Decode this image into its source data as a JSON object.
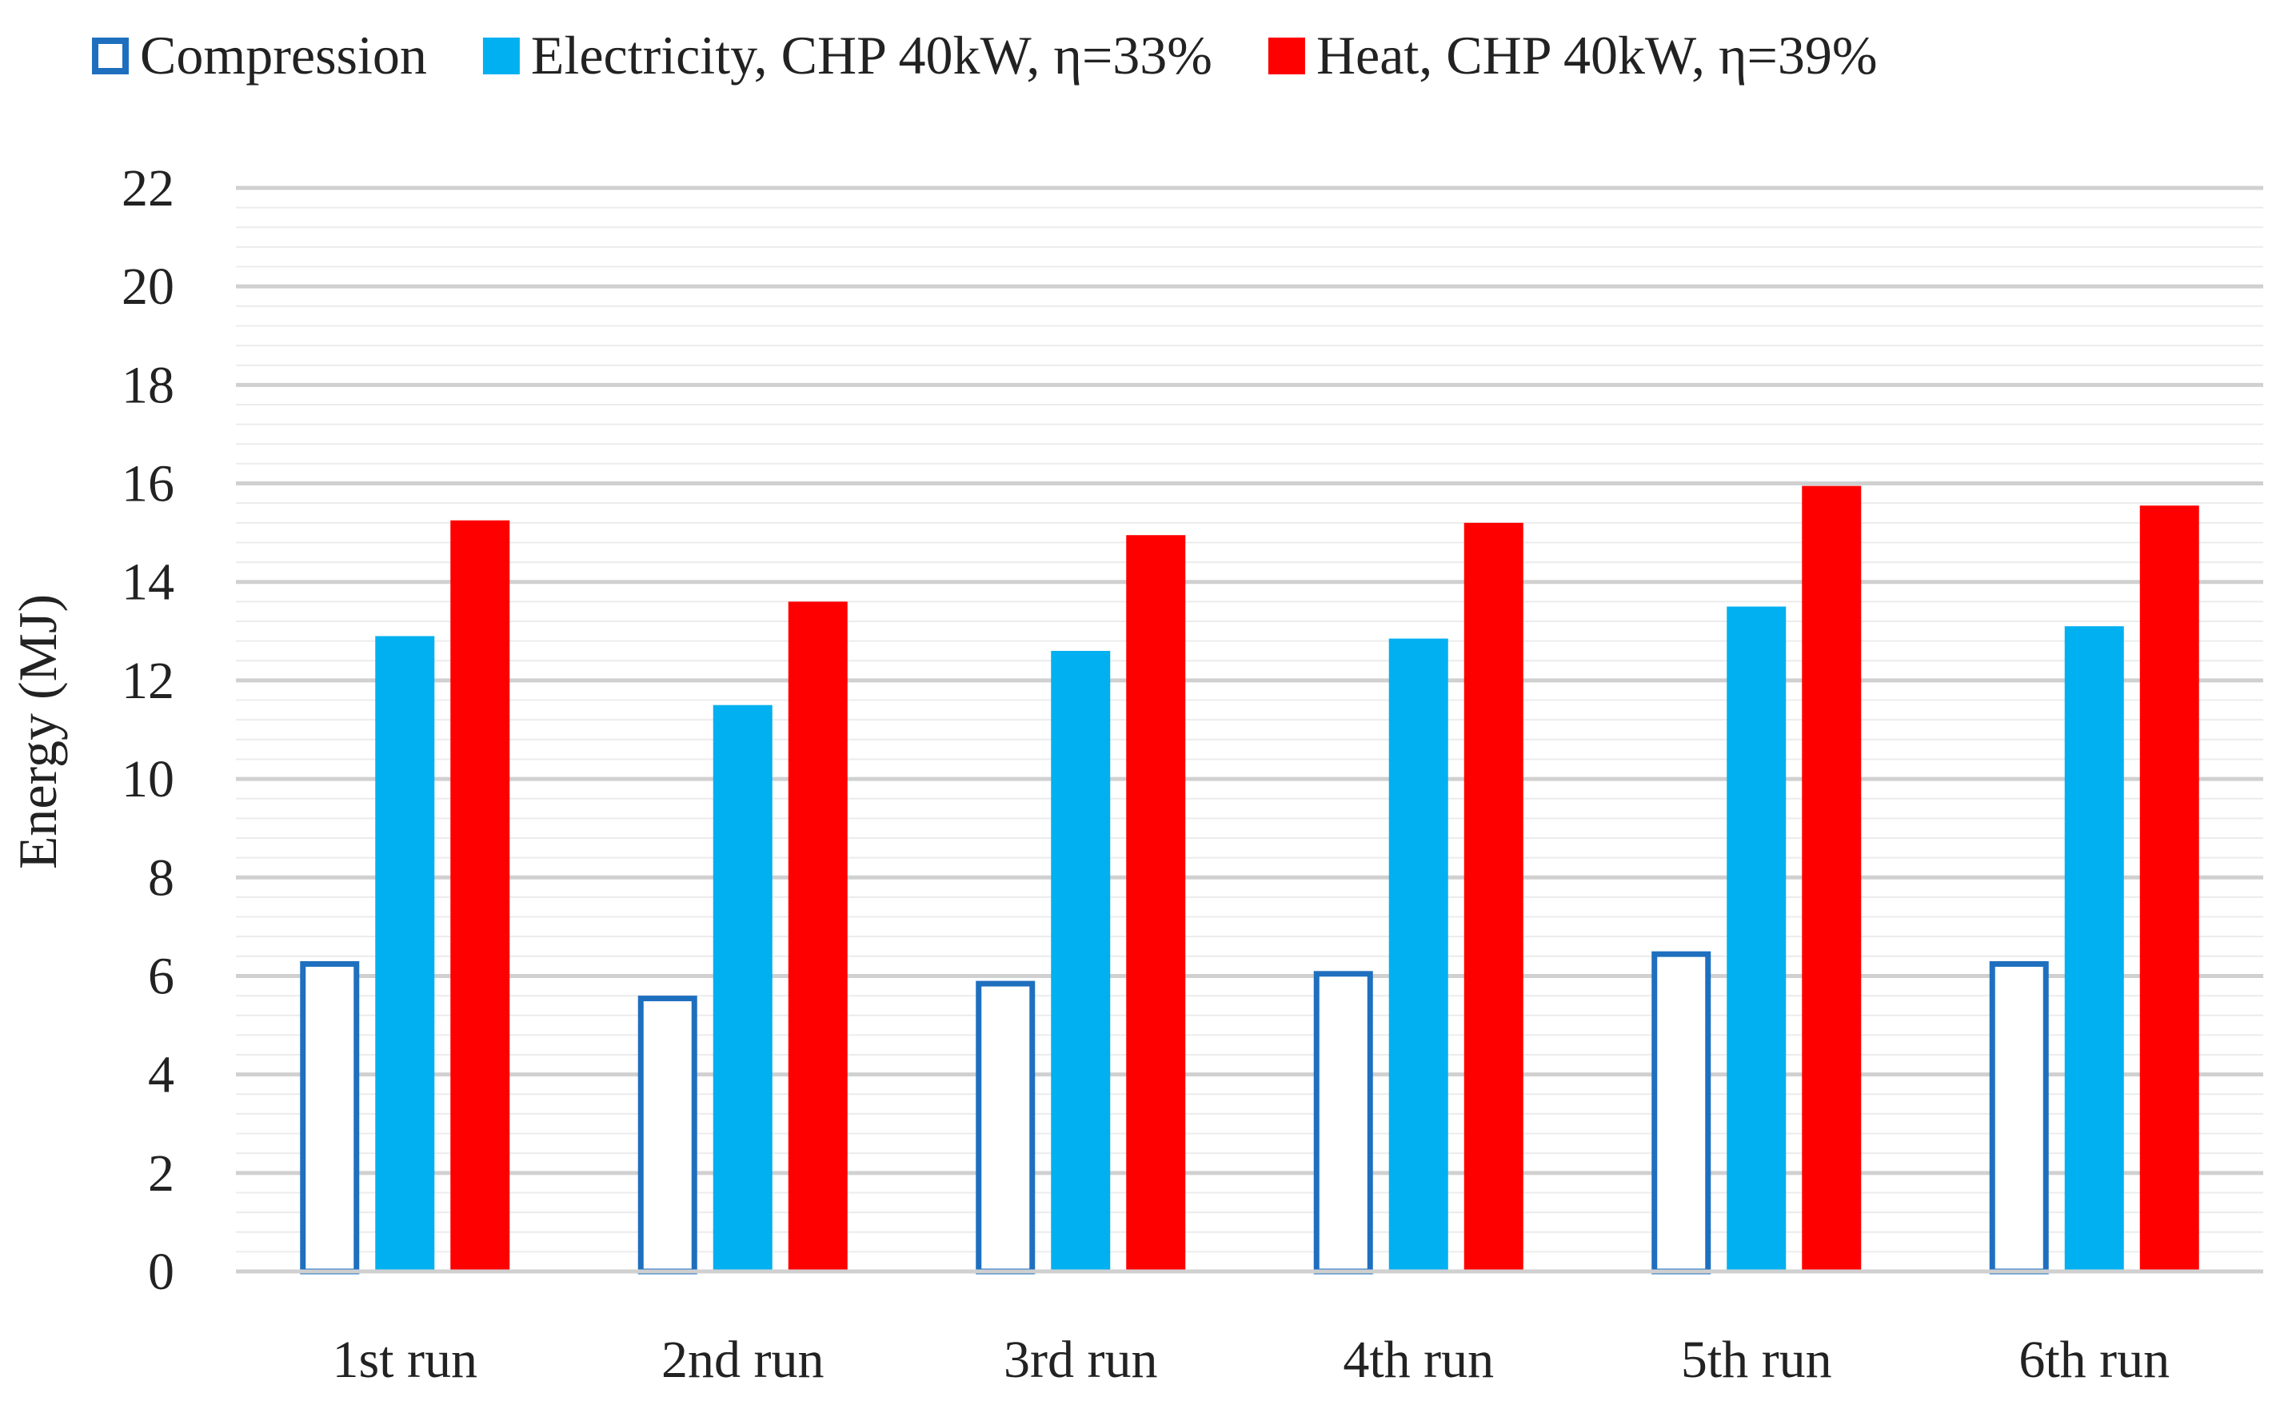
{
  "chart_data": {
    "type": "bar",
    "title": "",
    "xlabel": "",
    "ylabel": "Energy (MJ)",
    "ylim": [
      0,
      22
    ],
    "ytick_step": 2,
    "minor_grid_step": 0.4,
    "grid": true,
    "legend_position": "top",
    "categories": [
      "1st run",
      "2nd run",
      "3rd run",
      "4th run",
      "5th run",
      "6th run"
    ],
    "series": [
      {
        "name": "Compression",
        "style": "outline",
        "color": "#1f6fbf",
        "values": [
          6.3,
          5.6,
          5.9,
          6.1,
          6.5,
          6.3
        ]
      },
      {
        "name": "Electricity, CHP 40kW, η=33%",
        "style": "filled",
        "color": "#00b0f0",
        "values": [
          12.9,
          11.5,
          12.6,
          12.85,
          13.5,
          13.1
        ]
      },
      {
        "name": "Heat, CHP 40kW, η=39%",
        "style": "filled",
        "color": "#ff0000",
        "values": [
          15.25,
          13.6,
          14.95,
          15.2,
          15.95,
          15.55
        ]
      }
    ]
  }
}
